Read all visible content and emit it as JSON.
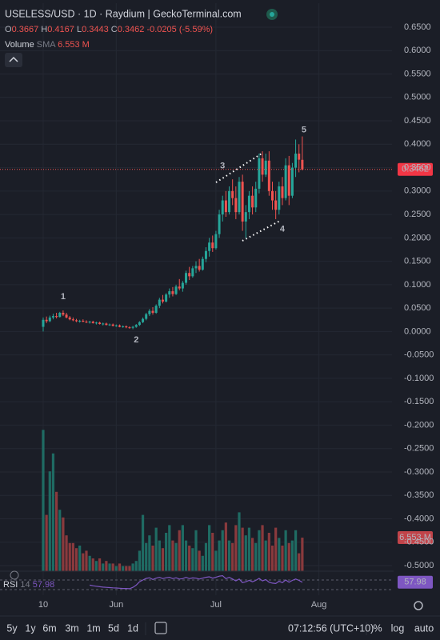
{
  "header": {
    "symbol": "USELESS/USD · 1D · Raydium | GeckoTerminal.com",
    "ohlc": [
      {
        "key": "O",
        "value": 0.3667
      },
      {
        "key": "H",
        "value": 0.4167
      },
      {
        "key": "L",
        "value": 0.3443
      },
      {
        "key": "C",
        "value": 0.3462
      }
    ],
    "change": -0.0205,
    "change_pct": "(-5.59%)",
    "volume_label": "Volume",
    "volume_sma": "SMA",
    "volume_value": "6.553 M"
  },
  "chart_data": {
    "type": "candlestick",
    "up_color": "#26a69a",
    "down_color": "#ef5350",
    "candles": [
      [
        0.01,
        0.03,
        0.0,
        0.025
      ],
      [
        0.025,
        0.032,
        0.018,
        0.022
      ],
      [
        0.022,
        0.034,
        0.02,
        0.03
      ],
      [
        0.03,
        0.038,
        0.026,
        0.033
      ],
      [
        0.033,
        0.04,
        0.028,
        0.031
      ],
      [
        0.031,
        0.042,
        0.03,
        0.04
      ],
      [
        0.04,
        0.045,
        0.033,
        0.036
      ],
      [
        0.036,
        0.04,
        0.028,
        0.03
      ],
      [
        0.03,
        0.033,
        0.024,
        0.026
      ],
      [
        0.026,
        0.03,
        0.022,
        0.024
      ],
      [
        0.024,
        0.027,
        0.02,
        0.022
      ],
      [
        0.022,
        0.025,
        0.019,
        0.023
      ],
      [
        0.023,
        0.026,
        0.02,
        0.021
      ],
      [
        0.021,
        0.024,
        0.018,
        0.02
      ],
      [
        0.02,
        0.023,
        0.017,
        0.021
      ],
      [
        0.021,
        0.023,
        0.017,
        0.018
      ],
      [
        0.018,
        0.021,
        0.015,
        0.019
      ],
      [
        0.019,
        0.021,
        0.015,
        0.016
      ],
      [
        0.016,
        0.019,
        0.013,
        0.017
      ],
      [
        0.017,
        0.019,
        0.013,
        0.014
      ],
      [
        0.014,
        0.017,
        0.012,
        0.015
      ],
      [
        0.015,
        0.017,
        0.011,
        0.012
      ],
      [
        0.012,
        0.015,
        0.01,
        0.013
      ],
      [
        0.013,
        0.015,
        0.009,
        0.01
      ],
      [
        0.01,
        0.013,
        0.008,
        0.011
      ],
      [
        0.011,
        0.013,
        0.007,
        0.009
      ],
      [
        0.009,
        0.011,
        0.006,
        0.008
      ],
      [
        0.008,
        0.012,
        0.005,
        0.01
      ],
      [
        0.01,
        0.016,
        0.008,
        0.014
      ],
      [
        0.014,
        0.022,
        0.012,
        0.02
      ],
      [
        0.02,
        0.03,
        0.018,
        0.027
      ],
      [
        0.027,
        0.04,
        0.024,
        0.037
      ],
      [
        0.037,
        0.048,
        0.033,
        0.044
      ],
      [
        0.044,
        0.052,
        0.036,
        0.04
      ],
      [
        0.04,
        0.058,
        0.038,
        0.055
      ],
      [
        0.055,
        0.072,
        0.05,
        0.068
      ],
      [
        0.068,
        0.078,
        0.06,
        0.064
      ],
      [
        0.064,
        0.082,
        0.062,
        0.079
      ],
      [
        0.079,
        0.092,
        0.072,
        0.086
      ],
      [
        0.086,
        0.095,
        0.075,
        0.08
      ],
      [
        0.08,
        0.1,
        0.078,
        0.096
      ],
      [
        0.096,
        0.112,
        0.088,
        0.092
      ],
      [
        0.092,
        0.108,
        0.085,
        0.104
      ],
      [
        0.104,
        0.13,
        0.1,
        0.125
      ],
      [
        0.125,
        0.138,
        0.11,
        0.118
      ],
      [
        0.118,
        0.14,
        0.115,
        0.135
      ],
      [
        0.135,
        0.15,
        0.125,
        0.14
      ],
      [
        0.14,
        0.155,
        0.128,
        0.132
      ],
      [
        0.132,
        0.16,
        0.13,
        0.155
      ],
      [
        0.155,
        0.18,
        0.148,
        0.172
      ],
      [
        0.172,
        0.2,
        0.16,
        0.19
      ],
      [
        0.19,
        0.205,
        0.17,
        0.178
      ],
      [
        0.178,
        0.215,
        0.175,
        0.208
      ],
      [
        0.208,
        0.26,
        0.2,
        0.25
      ],
      [
        0.25,
        0.29,
        0.235,
        0.28
      ],
      [
        0.28,
        0.3,
        0.245,
        0.255
      ],
      [
        0.255,
        0.31,
        0.25,
        0.3
      ],
      [
        0.3,
        0.325,
        0.27,
        0.285
      ],
      [
        0.285,
        0.31,
        0.24,
        0.255
      ],
      [
        0.255,
        0.33,
        0.25,
        0.32
      ],
      [
        0.32,
        0.335,
        0.215,
        0.235
      ],
      [
        0.235,
        0.27,
        0.2,
        0.255
      ],
      [
        0.255,
        0.3,
        0.24,
        0.29
      ],
      [
        0.29,
        0.31,
        0.25,
        0.265
      ],
      [
        0.265,
        0.32,
        0.255,
        0.305
      ],
      [
        0.305,
        0.38,
        0.295,
        0.37
      ],
      [
        0.37,
        0.385,
        0.32,
        0.335
      ],
      [
        0.335,
        0.38,
        0.33,
        0.365
      ],
      [
        0.365,
        0.385,
        0.29,
        0.3
      ],
      [
        0.3,
        0.32,
        0.26,
        0.28
      ],
      [
        0.28,
        0.3,
        0.24,
        0.26
      ],
      [
        0.26,
        0.32,
        0.25,
        0.31
      ],
      [
        0.31,
        0.33,
        0.27,
        0.285
      ],
      [
        0.285,
        0.37,
        0.28,
        0.355
      ],
      [
        0.355,
        0.375,
        0.27,
        0.29
      ],
      [
        0.29,
        0.36,
        0.285,
        0.35
      ],
      [
        0.35,
        0.41,
        0.33,
        0.38
      ],
      [
        0.38,
        0.4,
        0.34,
        0.367
      ],
      [
        0.3667,
        0.4167,
        0.3443,
        0.3462
      ]
    ],
    "volume": [
      27.6,
      11,
      19.5,
      23,
      15.5,
      12,
      10.5,
      7,
      5.5,
      5.5,
      4.5,
      5,
      3.5,
      4,
      3,
      2.5,
      2,
      2.5,
      1.5,
      2,
      1.5,
      1.5,
      1,
      1.5,
      1,
      1,
      1,
      1.5,
      2,
      4,
      11,
      5.5,
      7,
      5,
      8.5,
      6,
      4.5,
      7.5,
      9,
      6,
      5.5,
      8,
      9,
      6,
      5,
      4.5,
      8,
      4,
      3,
      5.5,
      9,
      7.5,
      4,
      6,
      8,
      9.5,
      6,
      5.5,
      9,
      11.5,
      8.5,
      7,
      8.5,
      6.5,
      5.5,
      8,
      9,
      6,
      7.5,
      5,
      8.5,
      6.5,
      5,
      8,
      5.5,
      6,
      8,
      3.5,
      6.553
    ],
    "xlim": [
      -13,
      105
    ],
    "xticks": [
      {
        "value": 0,
        "label": "10"
      },
      {
        "value": 22,
        "label": "Jun"
      },
      {
        "value": 52,
        "label": "Jul"
      },
      {
        "value": 83,
        "label": "Aug"
      }
    ],
    "ylim": [
      -0.5,
      0.65
    ],
    "yticks": [
      {
        "value": 0.65,
        "label": "0.6500"
      },
      {
        "value": 0.6,
        "label": "0.6000"
      },
      {
        "value": 0.55,
        "label": "0.5500"
      },
      {
        "value": 0.5,
        "label": "0.5000"
      },
      {
        "value": 0.45,
        "label": "0.4500"
      },
      {
        "value": 0.4,
        "label": "0.4000"
      },
      {
        "value": 0.35,
        "label": "0.3500"
      },
      {
        "value": 0.3,
        "label": "0.3000"
      },
      {
        "value": 0.25,
        "label": "0.2500"
      },
      {
        "value": 0.2,
        "label": "0.2000"
      },
      {
        "value": 0.15,
        "label": "0.1500"
      },
      {
        "value": 0.1,
        "label": "0.1000"
      },
      {
        "value": 0.05,
        "label": "0.0500"
      },
      {
        "value": 0,
        "label": "0.0000"
      },
      {
        "value": -0.05,
        "label": "-0.0500"
      },
      {
        "value": -0.1,
        "label": "-0.1000"
      },
      {
        "value": -0.15,
        "label": "-0.1500"
      },
      {
        "value": -0.2,
        "label": "-0.2000"
      },
      {
        "value": -0.25,
        "label": "-0.2500"
      },
      {
        "value": -0.3,
        "label": "-0.3000"
      },
      {
        "value": -0.35,
        "label": "-0.3500"
      },
      {
        "value": -0.4,
        "label": "-0.4000"
      },
      {
        "value": -0.45,
        "label": "-0.4500"
      },
      {
        "value": -0.5,
        "label": "-0.5000"
      }
    ],
    "annotations": [
      {
        "text": "1",
        "x": 6,
        "y": 0.074
      },
      {
        "text": "2",
        "x": 28,
        "y": -0.018
      },
      {
        "text": "3",
        "x": 54,
        "y": 0.353
      },
      {
        "text": "4",
        "x": 72,
        "y": 0.218
      },
      {
        "text": "5",
        "x": 78.5,
        "y": 0.43
      }
    ],
    "rsi": {
      "label": "RSI",
      "length": 14,
      "value": 57.98,
      "color": "#7e57c2",
      "values": [
        null,
        null,
        null,
        null,
        null,
        null,
        null,
        null,
        null,
        null,
        null,
        null,
        null,
        null,
        45,
        42,
        40,
        38,
        36,
        35,
        34,
        33,
        32,
        31,
        30,
        30,
        29,
        35,
        45,
        60,
        68,
        75,
        78,
        70,
        76,
        80,
        74,
        78,
        80,
        74,
        78,
        72,
        74,
        80,
        74,
        77,
        76,
        72,
        76,
        80,
        82,
        76,
        80,
        85,
        87,
        74,
        80,
        72,
        64,
        72,
        56,
        60,
        66,
        60,
        66,
        75,
        64,
        70,
        58,
        54,
        52,
        62,
        56,
        68,
        58,
        66,
        72,
        66,
        57.98
      ]
    }
  },
  "toolbar": {
    "ranges": [
      "5y",
      "1y",
      "6m",
      "3m",
      "1m",
      "5d",
      "1d"
    ],
    "time": "07:12:56 (UTC+10)",
    "options": [
      "%",
      "log",
      "auto"
    ]
  }
}
